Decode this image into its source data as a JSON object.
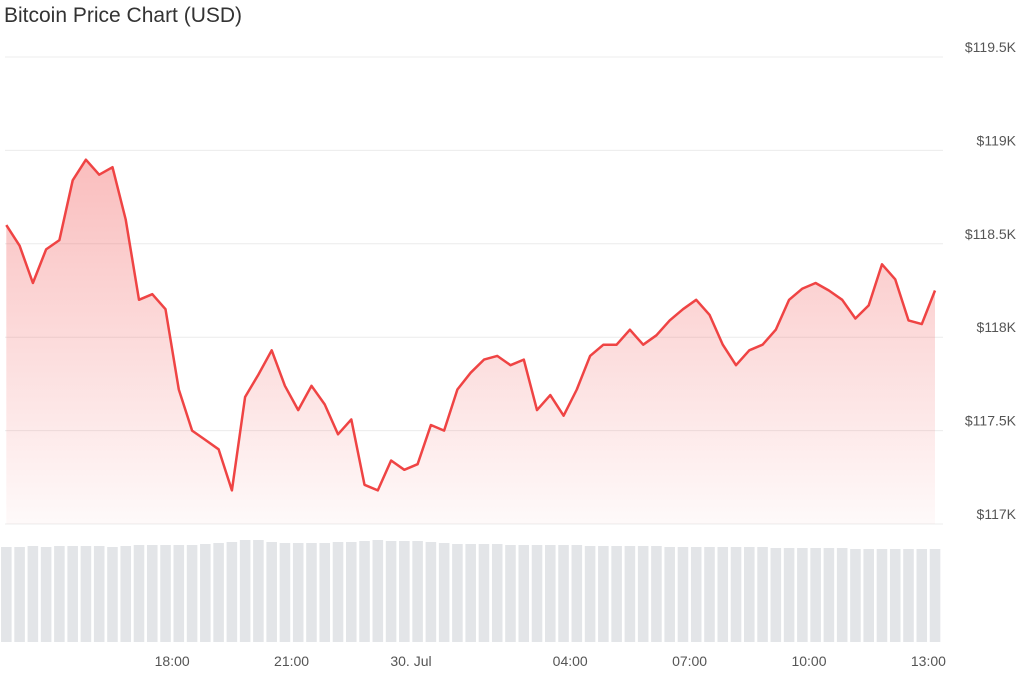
{
  "chart_data": {
    "type": "line",
    "title": "Bitcoin Price Chart (USD)",
    "x": [
      "13:50",
      "14:10",
      "14:30",
      "14:50",
      "15:10",
      "15:30",
      "15:50",
      "16:10",
      "16:30",
      "16:50",
      "17:10",
      "17:30",
      "17:50",
      "18:10",
      "18:30",
      "18:50",
      "19:10",
      "19:30",
      "19:50",
      "20:10",
      "20:30",
      "20:50",
      "21:10",
      "21:30",
      "21:50",
      "22:10",
      "22:30",
      "22:50",
      "23:10",
      "23:30",
      "23:50",
      "00:10",
      "00:30",
      "00:50",
      "01:10",
      "01:30",
      "01:50",
      "02:10",
      "02:30",
      "02:50",
      "03:10",
      "03:30",
      "03:50",
      "04:10",
      "04:30",
      "04:50",
      "05:10",
      "05:30",
      "05:50",
      "06:10",
      "06:30",
      "06:50",
      "07:10",
      "07:30",
      "07:50",
      "08:10",
      "08:30",
      "08:50",
      "09:10",
      "09:30",
      "09:50",
      "10:10",
      "10:30",
      "10:50",
      "11:10",
      "11:30",
      "11:50",
      "12:10",
      "12:30",
      "12:50",
      "13:10"
    ],
    "values": [
      118600,
      118490,
      118290,
      118470,
      118520,
      118840,
      118950,
      118870,
      118910,
      118630,
      118200,
      118230,
      118150,
      117720,
      117500,
      117450,
      117400,
      117180,
      117680,
      117800,
      117930,
      117740,
      117610,
      117740,
      117640,
      117480,
      117560,
      117210,
      117180,
      117340,
      117290,
      117320,
      117530,
      117500,
      117720,
      117810,
      117880,
      117900,
      117850,
      117880,
      117610,
      117690,
      117580,
      117720,
      117900,
      117960,
      117960,
      118040,
      117960,
      118010,
      118090,
      118150,
      118200,
      118120,
      117960,
      117850,
      117930,
      117960,
      118040,
      118200,
      118260,
      118290,
      118250,
      118200,
      118100,
      118170,
      118390,
      118310,
      118090,
      118070,
      118250
    ],
    "volume": [
      95,
      95,
      96,
      95,
      96,
      96,
      96,
      96,
      95,
      96,
      97,
      97,
      97,
      97,
      97,
      98,
      99,
      100,
      102,
      102,
      100,
      99,
      99,
      99,
      99,
      100,
      100,
      101,
      102,
      101,
      101,
      101,
      100,
      99,
      98,
      98,
      98,
      98,
      97,
      97,
      97,
      97,
      97,
      97,
      96,
      96,
      96,
      96,
      96,
      96,
      95,
      95,
      95,
      95,
      95,
      95,
      95,
      95,
      94,
      94,
      94,
      94,
      94,
      94,
      93,
      93,
      93,
      93,
      93,
      93,
      93
    ],
    "color": "#ef4444",
    "volume_color": "#e3e5e8",
    "xlim": [
      "13:48",
      "13:22"
    ],
    "xticks": [
      "18:00",
      "21:00",
      {
        "value": "00:00",
        "label": "30. Jul"
      },
      "04:00",
      "07:00",
      "10:00",
      "13:00"
    ],
    "ylim": [
      117000,
      119500
    ],
    "yticks": [
      {
        "value": 117000,
        "label": "$117K"
      },
      {
        "value": 117500,
        "label": "$117.5K"
      },
      {
        "value": 118000,
        "label": "$118K"
      },
      {
        "value": 118500,
        "label": "$118.5K"
      },
      {
        "value": 119000,
        "label": "$119K"
      },
      {
        "value": 119500,
        "label": "$119.5K"
      }
    ],
    "grid": true
  }
}
